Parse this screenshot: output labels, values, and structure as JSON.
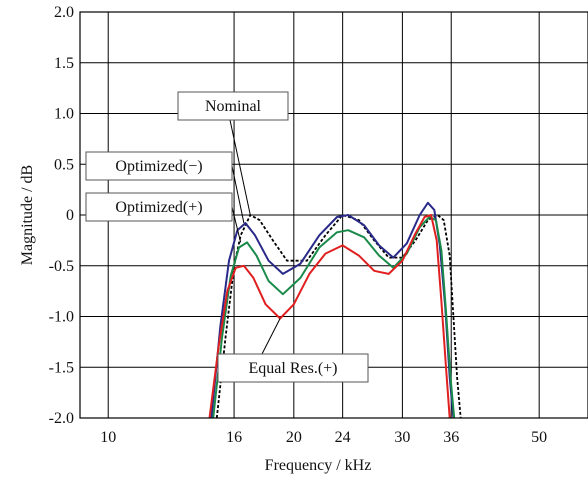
{
  "chart_data": {
    "type": "line",
    "xlabel": "Frequency / kHz",
    "ylabel": "Magnitude / dB",
    "x_scale": "log",
    "xlim": [
      9,
      60
    ],
    "ylim": [
      -2.0,
      2.0
    ],
    "grid": true,
    "x_ticks": [
      10,
      16,
      20,
      24,
      30,
      36,
      50
    ],
    "x_tick_labels": [
      "10",
      "16",
      "20",
      "24",
      "30",
      "36",
      "50"
    ],
    "y_ticks": [
      2.0,
      1.5,
      1.0,
      0.5,
      0,
      -0.5,
      -1.0,
      -1.5,
      -2.0
    ],
    "y_tick_labels": [
      "2.0",
      "1.5",
      "1.0",
      "0.5",
      "0",
      "-0.5",
      "-1.0",
      "-1.5",
      "-2.0"
    ],
    "series": [
      {
        "color": "#000000",
        "dash": true,
        "x": [
          15.0,
          15.5,
          16.0,
          16.4,
          17.0,
          17.6,
          18.5,
          19.5,
          21.0,
          22.5,
          24.0,
          25.5,
          27.0,
          28.5,
          30.0,
          31.5,
          33.0,
          34.2,
          35.0,
          35.8,
          36.3,
          36.8,
          37.3
        ],
        "y": [
          -2.0,
          -1.2,
          -0.5,
          -0.2,
          0.0,
          -0.05,
          -0.25,
          -0.45,
          -0.45,
          -0.2,
          0.0,
          -0.05,
          -0.25,
          -0.42,
          -0.42,
          -0.25,
          -0.05,
          0.0,
          -0.05,
          -0.4,
          -1.0,
          -1.6,
          -2.0
        ]
      },
      {
        "color": "#2a2a8a",
        "x": [
          14.7,
          15.2,
          15.7,
          16.2,
          16.7,
          17.3,
          18.2,
          19.2,
          20.5,
          22.0,
          23.5,
          24.5,
          26.0,
          27.5,
          29.0,
          30.5,
          32.0,
          33.0,
          33.8,
          34.5,
          35.2,
          35.8,
          36.3
        ],
        "y": [
          -2.0,
          -1.1,
          -0.45,
          -0.15,
          -0.08,
          -0.2,
          -0.45,
          -0.58,
          -0.48,
          -0.2,
          -0.02,
          0.0,
          -0.1,
          -0.3,
          -0.42,
          -0.28,
          0.0,
          0.12,
          0.05,
          -0.3,
          -0.9,
          -1.6,
          -2.0
        ]
      },
      {
        "color": "#1a8a4a",
        "x": [
          14.8,
          15.3,
          15.8,
          16.3,
          16.8,
          17.4,
          18.2,
          19.2,
          20.5,
          22.0,
          23.5,
          24.5,
          26.0,
          27.5,
          29.0,
          30.5,
          32.0,
          33.2,
          34.0,
          34.7,
          35.3,
          35.9,
          36.4
        ],
        "y": [
          -2.0,
          -1.2,
          -0.6,
          -0.32,
          -0.27,
          -0.4,
          -0.65,
          -0.78,
          -0.62,
          -0.32,
          -0.17,
          -0.15,
          -0.22,
          -0.4,
          -0.52,
          -0.38,
          -0.12,
          -0.02,
          -0.05,
          -0.35,
          -0.95,
          -1.6,
          -2.0
        ]
      },
      {
        "color": "#e02020",
        "x": [
          14.6,
          15.1,
          15.6,
          16.1,
          16.6,
          17.2,
          18.0,
          19.0,
          20.0,
          21.2,
          22.5,
          24.0,
          25.5,
          27.0,
          28.5,
          30.0,
          31.5,
          32.6,
          33.4,
          34.1,
          34.7,
          35.3,
          35.8
        ],
        "y": [
          -2.0,
          -1.3,
          -0.75,
          -0.52,
          -0.5,
          -0.62,
          -0.88,
          -1.02,
          -0.88,
          -0.58,
          -0.38,
          -0.3,
          -0.4,
          -0.55,
          -0.58,
          -0.45,
          -0.18,
          -0.02,
          0.0,
          -0.25,
          -0.85,
          -1.5,
          -2.0
        ]
      }
    ],
    "annotations": [
      {
        "text": "Nominal",
        "target_x": 17.0,
        "target_y": 0.0
      },
      {
        "text": "Optimized(−)",
        "target_x": 16.6,
        "target_y": -0.08
      },
      {
        "text": "Optimized(+)",
        "target_x": 16.4,
        "target_y": -0.27
      },
      {
        "text": "Equal Res.(+)",
        "target_x": 19.0,
        "target_y": -1.02
      }
    ]
  }
}
